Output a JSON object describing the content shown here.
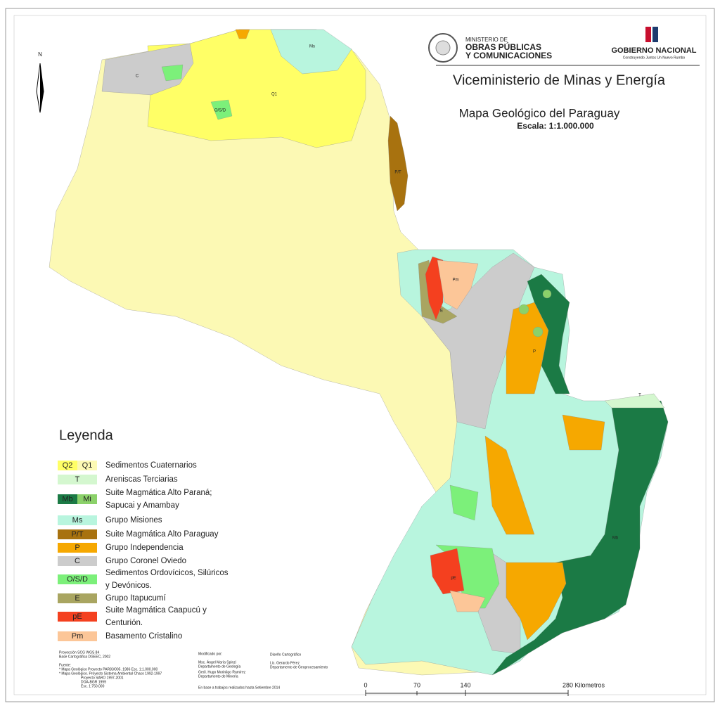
{
  "header": {
    "ministry": [
      "MINISTERIO DE",
      "OBRAS PÚBLICAS",
      "Y COMUNICACIONES"
    ],
    "government": "GOBIERNO NACIONAL",
    "slogan": "Construyendo Juntos Un Nuevo Rumbo",
    "vice": "Viceministerio de Minas y Energía",
    "title": "Mapa Geológico del Paraguay",
    "scale": "Escala: 1:1.000.000"
  },
  "north": "N",
  "map_labels": [
    "Q1",
    "C",
    "Ms",
    "O/S/D",
    "P/T",
    "pE",
    "Pm",
    "E",
    "P",
    "Mb",
    "T"
  ],
  "legend": {
    "title": "Leyenda",
    "items": [
      {
        "codes": [
          {
            "code": "Q2",
            "color": "#ffff66"
          },
          {
            "code": "Q1",
            "color": "#fcf9b4"
          }
        ],
        "label": [
          "Sedimentos Cuaternarios"
        ]
      },
      {
        "codes": [
          {
            "code": "T",
            "color": "#d4f7cf"
          }
        ],
        "label": [
          "Areniscas Terciarias"
        ]
      },
      {
        "codes": [
          {
            "code": "Mb",
            "color": "#1b7a45"
          },
          {
            "code": "Mi",
            "color": "#8bd16a"
          }
        ],
        "label": [
          "Suite Magmática Alto Paraná;",
          "Sapucai y Amambay"
        ]
      },
      {
        "codes": [
          {
            "code": "Ms",
            "color": "#b8f5de"
          }
        ],
        "label": [
          "Grupo Misiones"
        ]
      },
      {
        "codes": [
          {
            "code": "P/T",
            "color": "#a8720f"
          }
        ],
        "label": [
          "Suite Magmática Alto Paraguay"
        ]
      },
      {
        "codes": [
          {
            "code": "P",
            "color": "#f6a800"
          }
        ],
        "label": [
          "Grupo Independencia"
        ]
      },
      {
        "codes": [
          {
            "code": "C",
            "color": "#cccccc"
          }
        ],
        "label": [
          "Grupo Coronel Oviedo"
        ]
      },
      {
        "codes": [
          {
            "code": "O/S/D",
            "color": "#7cf07a"
          }
        ],
        "label": [
          "Sedimentos Ordovícicos, Silúricos",
          "y Devónicos."
        ]
      },
      {
        "codes": [
          {
            "code": "E",
            "color": "#a9a561"
          }
        ],
        "label": [
          "Grupo Itapucumí"
        ]
      },
      {
        "codes": [
          {
            "code": "pE",
            "color": "#f4401f"
          }
        ],
        "label": [
          "Suite Magmática Caapucú y",
          "Centurión."
        ]
      },
      {
        "codes": [
          {
            "code": "Pm",
            "color": "#fcc698"
          }
        ],
        "label": [
          "Basamento Cristalino"
        ]
      }
    ]
  },
  "scalebar": [
    "0",
    "70",
    "140",
    "280 Kilometros"
  ],
  "credits": {
    "sources": [
      "Proyección SCG WGS 84",
      "Base Cartográfica DGEEC, 2002",
      "Fuente:",
      "* Mapa Geológico Proyecto PAR83/005. 1986 Esc. 1:1.000.000",
      "* Mapa Geológico. Proyecto Sistema Ambiental Chaco 1992-1997",
      "Proyecto SARO 1997-2001",
      "DOA-BGR 1999",
      "Esc. 1:750.000"
    ],
    "modified": [
      "Modificado por:",
      "Msc. Ángel María Spinzi",
      "Departamento de Geología",
      "Geól. Hugo Moriniigo Ramírez",
      "Departamento de Minería"
    ],
    "based": "En base a trabajos realizados hasta Setiembre 2014",
    "design": [
      "Diseño Cartográfico",
      "Lic. Gerardo Pérez",
      "Departamento de Geoprocesamiento"
    ]
  }
}
